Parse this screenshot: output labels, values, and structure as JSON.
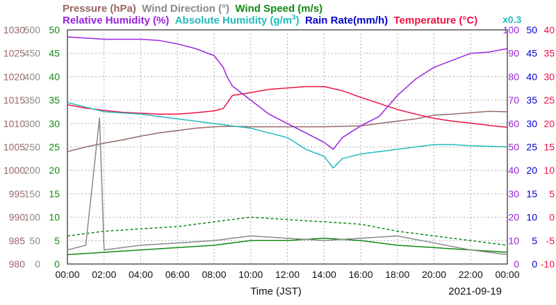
{
  "chart_data": {
    "type": "line",
    "title_row1": [
      {
        "text": "Pressure (hPa)",
        "color": "#996666"
      },
      {
        "text": "Wind Direction (°)",
        "color": "#888888"
      },
      {
        "text": "Wind Speed (m/s)",
        "color": "#118811"
      }
    ],
    "title_row2": [
      {
        "text": "Relative Humidity (%)",
        "color": "#9922dd"
      },
      {
        "text": "Absolute Humidity (g/m",
        "sup": "3",
        "tail": ")",
        "color": "#22bbbb"
      },
      {
        "text": "Rain Rate(mm/h)",
        "color": "#0000cc"
      },
      {
        "text": "Temperature (°C)",
        "color": "#ee1144"
      }
    ],
    "multiplier_label": "x0.3",
    "xlabel": "Time (JST)",
    "date": "2021-09-19",
    "x_ticks": [
      "00:00",
      "02:00",
      "04:00",
      "06:00",
      "08:00",
      "10:00",
      "12:00",
      "14:00",
      "16:00",
      "18:00",
      "20:00",
      "22:00",
      "00:00"
    ],
    "xlim": [
      0,
      24
    ],
    "axes": {
      "pressure": {
        "ticks": [
          "1030",
          "1025",
          "1020",
          "1015",
          "1010",
          "1005",
          "1000",
          "995",
          "990",
          "985",
          "980"
        ],
        "ylim": [
          980,
          1030
        ],
        "color": "#996666"
      },
      "wind_direction": {
        "ticks": [
          "500",
          "450",
          "400",
          "350",
          "300",
          "250",
          "200",
          "150",
          "100",
          "50",
          "0"
        ],
        "ylim": [
          0,
          500
        ],
        "color": "#888888"
      },
      "wind_speed": {
        "ticks": [
          "50",
          "45",
          "40",
          "35",
          "30",
          "25",
          "20",
          "15",
          "10",
          "5",
          "0"
        ],
        "ylim": [
          0,
          50
        ],
        "color": "#118811"
      },
      "humidity": {
        "ticks": [
          "100",
          "90",
          "80",
          "70",
          "60",
          "50",
          "40",
          "30",
          "20",
          "10",
          "0"
        ],
        "ylim": [
          0,
          100
        ],
        "color": "#9922dd"
      },
      "rain": {
        "ticks": [
          "50",
          "45",
          "40",
          "35",
          "30",
          "25",
          "20",
          "15",
          "10",
          "5",
          "0"
        ],
        "ylim": [
          0,
          50
        ],
        "color": "#0000cc"
      },
      "temperature": {
        "ticks": [
          "40",
          "35",
          "30",
          "25",
          "20",
          "15",
          "10",
          "5",
          "0",
          "-5",
          "-10"
        ],
        "ylim": [
          -10,
          40
        ],
        "color": "#ee1144"
      }
    },
    "grid": true,
    "series": [
      {
        "key": "pressure",
        "axis": "pressure",
        "color": "#996666",
        "points": [
          [
            0,
            1004
          ],
          [
            1,
            1005
          ],
          [
            2,
            1005.8
          ],
          [
            3,
            1006.5
          ],
          [
            4,
            1007.3
          ],
          [
            5,
            1008
          ],
          [
            6,
            1008.5
          ],
          [
            7,
            1009
          ],
          [
            8,
            1009.3
          ],
          [
            9,
            1009.4
          ],
          [
            10,
            1009.3
          ],
          [
            11,
            1009.3
          ],
          [
            12,
            1009.3
          ],
          [
            13,
            1009.3
          ],
          [
            14,
            1009.3
          ],
          [
            15,
            1009.4
          ],
          [
            16,
            1009.5
          ],
          [
            17,
            1010
          ],
          [
            18,
            1010.5
          ],
          [
            19,
            1011
          ],
          [
            20,
            1011.8
          ],
          [
            21,
            1012
          ],
          [
            22,
            1012.3
          ],
          [
            23,
            1012.6
          ],
          [
            24,
            1012.5
          ]
        ]
      },
      {
        "key": "temperature",
        "axis": "temperature",
        "color": "#ee1144",
        "points": [
          [
            0,
            24
          ],
          [
            1,
            23.3
          ],
          [
            2,
            22.8
          ],
          [
            3,
            22.4
          ],
          [
            4,
            22.2
          ],
          [
            5,
            22
          ],
          [
            6,
            22
          ],
          [
            7,
            22.3
          ],
          [
            8,
            22.7
          ],
          [
            8.5,
            23.2
          ],
          [
            9,
            26
          ],
          [
            10,
            26.6
          ],
          [
            11,
            27.3
          ],
          [
            12,
            27.6
          ],
          [
            13,
            27.9
          ],
          [
            14,
            27.9
          ],
          [
            15,
            27
          ],
          [
            16,
            25.6
          ],
          [
            17,
            24.3
          ],
          [
            18,
            23
          ],
          [
            19,
            22
          ],
          [
            20,
            21.1
          ],
          [
            21,
            20.5
          ],
          [
            22,
            20.1
          ],
          [
            23,
            19.6
          ],
          [
            24,
            19.2
          ]
        ]
      },
      {
        "key": "relative_humidity",
        "axis": "humidity",
        "color": "#9922dd",
        "points": [
          [
            0,
            97
          ],
          [
            2,
            96
          ],
          [
            3,
            96
          ],
          [
            4,
            96
          ],
          [
            5,
            95.5
          ],
          [
            6,
            94
          ],
          [
            7,
            92
          ],
          [
            8,
            89
          ],
          [
            8.5,
            84
          ],
          [
            8.7,
            80
          ],
          [
            9,
            76
          ],
          [
            9.5,
            73
          ],
          [
            10,
            70
          ],
          [
            10.5,
            67
          ],
          [
            11,
            64
          ],
          [
            12,
            60
          ],
          [
            13,
            56
          ],
          [
            14,
            52
          ],
          [
            14.5,
            49
          ],
          [
            15,
            54
          ],
          [
            16,
            59
          ],
          [
            17,
            63
          ],
          [
            18,
            72
          ],
          [
            19,
            79
          ],
          [
            20,
            84
          ],
          [
            21,
            87
          ],
          [
            22,
            90
          ],
          [
            23,
            90.5
          ],
          [
            24,
            92
          ]
        ]
      },
      {
        "key": "absolute_humidity",
        "axis": "humidity",
        "color": "#22bbbb",
        "points": [
          [
            0,
            69
          ],
          [
            1,
            67
          ],
          [
            2,
            65
          ],
          [
            3,
            64.5
          ],
          [
            4,
            64
          ],
          [
            5,
            63
          ],
          [
            6,
            62
          ],
          [
            7,
            61
          ],
          [
            8,
            60
          ],
          [
            9,
            59
          ],
          [
            10,
            58
          ],
          [
            11,
            56
          ],
          [
            12,
            54
          ],
          [
            13,
            49
          ],
          [
            14,
            46
          ],
          [
            14.5,
            41
          ],
          [
            15,
            45
          ],
          [
            16,
            47
          ],
          [
            17,
            48
          ],
          [
            18,
            49
          ],
          [
            19,
            50
          ],
          [
            20,
            51
          ],
          [
            21,
            51
          ],
          [
            22,
            50.5
          ],
          [
            23,
            50.3
          ],
          [
            24,
            50
          ]
        ]
      },
      {
        "key": "wind_speed_avg",
        "axis": "wind_speed",
        "color": "#118811",
        "points": [
          [
            0,
            2
          ],
          [
            2,
            2.5
          ],
          [
            4,
            3
          ],
          [
            6,
            3.5
          ],
          [
            8,
            4
          ],
          [
            10,
            5
          ],
          [
            12,
            5
          ],
          [
            14,
            5.5
          ],
          [
            16,
            5
          ],
          [
            18,
            4
          ],
          [
            20,
            3.5
          ],
          [
            22,
            3
          ],
          [
            24,
            2.5
          ]
        ]
      },
      {
        "key": "wind_speed_gust",
        "axis": "wind_speed",
        "color": "#118811",
        "dashed": true,
        "points": [
          [
            0,
            6
          ],
          [
            2,
            7
          ],
          [
            4,
            7.5
          ],
          [
            6,
            8
          ],
          [
            8,
            9
          ],
          [
            10,
            10
          ],
          [
            12,
            9.5
          ],
          [
            14,
            9
          ],
          [
            16,
            8.5
          ],
          [
            18,
            7
          ],
          [
            20,
            6
          ],
          [
            22,
            5
          ],
          [
            24,
            4
          ]
        ]
      },
      {
        "key": "wind_direction",
        "axis": "wind_direction",
        "color": "#888888",
        "points": [
          [
            0,
            30
          ],
          [
            1,
            40
          ],
          [
            1.75,
            312
          ],
          [
            2,
            30
          ],
          [
            4,
            40
          ],
          [
            6,
            45
          ],
          [
            8,
            50
          ],
          [
            10,
            60
          ],
          [
            12,
            55
          ],
          [
            14,
            50
          ],
          [
            16,
            55
          ],
          [
            18,
            60
          ],
          [
            20,
            45
          ],
          [
            22,
            30
          ],
          [
            24,
            20
          ]
        ]
      }
    ]
  }
}
